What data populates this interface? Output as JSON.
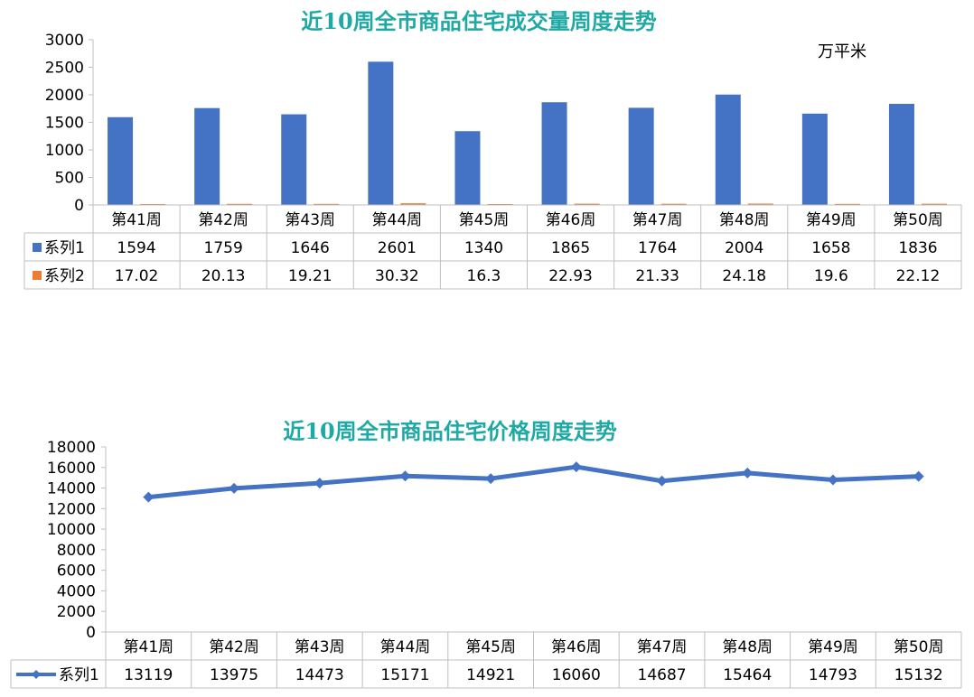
{
  "chart_data": [
    {
      "type": "bar",
      "title": "近10周全市商品住宅成交量周度走势",
      "unit_label": "万平米",
      "categories": [
        "第41周",
        "第42周",
        "第43周",
        "第44周",
        "第45周",
        "第46周",
        "第47周",
        "第48周",
        "第49周",
        "第50周"
      ],
      "y_ticks": [
        "3000",
        "2500",
        "2000",
        "1500",
        "1000",
        "500",
        "0"
      ],
      "ylim": [
        0,
        3000
      ],
      "series": [
        {
          "name": "系列1",
          "color": "#4472c4",
          "values": [
            1594,
            1759,
            1646,
            2601,
            1340,
            1865,
            1764,
            2004,
            1658,
            1836
          ]
        },
        {
          "name": "系列2",
          "color": "#ed7d31",
          "values": [
            17.02,
            20.13,
            19.21,
            30.32,
            16.3,
            22.93,
            21.33,
            24.18,
            19.6,
            22.12
          ]
        }
      ],
      "legend": "data-table"
    },
    {
      "type": "line",
      "title": "近10周全市商品住宅价格周度走势",
      "categories": [
        "第41周",
        "第42周",
        "第43周",
        "第44周",
        "第45周",
        "第46周",
        "第47周",
        "第48周",
        "第49周",
        "第50周"
      ],
      "y_ticks": [
        "18000",
        "16000",
        "14000",
        "12000",
        "10000",
        "8000",
        "6000",
        "4000",
        "2000",
        "0"
      ],
      "ylim": [
        0,
        18000
      ],
      "series": [
        {
          "name": "系列1",
          "color": "#4472c4",
          "values": [
            13119,
            13975,
            14473,
            15171,
            14921,
            16060,
            14687,
            15464,
            14793,
            15132
          ]
        }
      ],
      "legend": "data-table"
    }
  ]
}
